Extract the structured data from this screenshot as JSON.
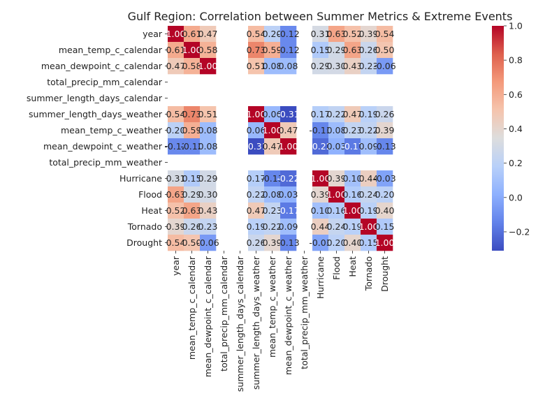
{
  "chart_data": {
    "type": "heatmap",
    "title": "Gulf Region: Correlation between Summer Metrics & Extreme Events",
    "rows": [
      "year",
      "mean_temp_c_calendar",
      "mean_dewpoint_c_calendar",
      "total_precip_mm_calendar",
      "summer_length_days_calendar",
      "summer_length_days_weather",
      "mean_temp_c_weather",
      "mean_dewpoint_c_weather",
      "total_precip_mm_weather",
      "Hurricane",
      "Flood",
      "Heat",
      "Tornado",
      "Drought"
    ],
    "columns": [
      "year",
      "mean_temp_c_calendar",
      "mean_dewpoint_c_calendar",
      "total_precip_mm_calendar",
      "summer_length_days_calendar",
      "summer_length_days_weather",
      "mean_temp_c_weather",
      "mean_dewpoint_c_weather",
      "total_precip_mm_weather",
      "Hurricane",
      "Flood",
      "Heat",
      "Tornado",
      "Drought"
    ],
    "values": [
      [
        1.0,
        0.61,
        0.47,
        null,
        null,
        0.54,
        0.2,
        -0.12,
        null,
        0.31,
        0.63,
        0.52,
        0.39,
        0.54
      ],
      [
        0.61,
        1.0,
        0.58,
        null,
        null,
        0.73,
        0.59,
        -0.12,
        null,
        0.15,
        0.29,
        0.63,
        0.26,
        0.5
      ],
      [
        0.47,
        0.58,
        1.0,
        null,
        null,
        0.51,
        0.08,
        0.08,
        null,
        0.29,
        0.3,
        0.43,
        0.23,
        -0.06
      ],
      [
        null,
        null,
        null,
        null,
        null,
        null,
        null,
        null,
        null,
        null,
        null,
        null,
        null,
        null
      ],
      [
        null,
        null,
        null,
        null,
        null,
        null,
        null,
        null,
        null,
        null,
        null,
        null,
        null,
        null
      ],
      [
        0.54,
        0.73,
        0.51,
        null,
        null,
        1.0,
        0.06,
        -0.31,
        null,
        0.17,
        0.22,
        0.47,
        0.19,
        0.26
      ],
      [
        0.2,
        0.59,
        0.08,
        null,
        null,
        0.06,
        1.0,
        0.47,
        null,
        -0.13,
        0.08,
        0.23,
        0.22,
        0.39
      ],
      [
        -0.12,
        -0.12,
        0.08,
        null,
        null,
        -0.31,
        0.47,
        1.0,
        null,
        -0.22,
        0.03,
        -0.17,
        0.09,
        -0.13
      ],
      [
        null,
        null,
        null,
        null,
        null,
        null,
        null,
        null,
        null,
        null,
        null,
        null,
        null,
        null
      ],
      [
        0.31,
        0.15,
        0.29,
        null,
        null,
        0.17,
        -0.13,
        -0.22,
        null,
        1.0,
        0.39,
        0.1,
        0.44,
        -0.03
      ],
      [
        0.63,
        0.29,
        0.3,
        null,
        null,
        0.22,
        0.08,
        0.03,
        null,
        0.39,
        1.0,
        0.16,
        0.24,
        0.2
      ],
      [
        0.52,
        0.63,
        0.43,
        null,
        null,
        0.47,
        0.23,
        -0.17,
        null,
        0.1,
        0.16,
        1.0,
        0.19,
        0.4
      ],
      [
        0.39,
        0.26,
        0.23,
        null,
        null,
        0.19,
        0.22,
        0.09,
        null,
        0.44,
        0.24,
        0.19,
        1.0,
        0.15
      ],
      [
        0.54,
        0.5,
        -0.06,
        null,
        null,
        0.26,
        0.39,
        -0.13,
        null,
        -0.03,
        0.2,
        0.4,
        0.15,
        1.0
      ]
    ],
    "value_format": "2 decimals",
    "colormap": "coolwarm",
    "colorbar": {
      "range": [
        -0.31,
        1.0
      ],
      "ticks": [
        -0.2,
        0.0,
        0.2,
        0.4,
        0.6,
        0.8,
        1.0
      ],
      "tick_labels": [
        "−0.2",
        "0.0",
        "0.2",
        "0.4",
        "0.6",
        "0.8",
        "1.0"
      ],
      "placement": "right"
    },
    "grid": false
  }
}
